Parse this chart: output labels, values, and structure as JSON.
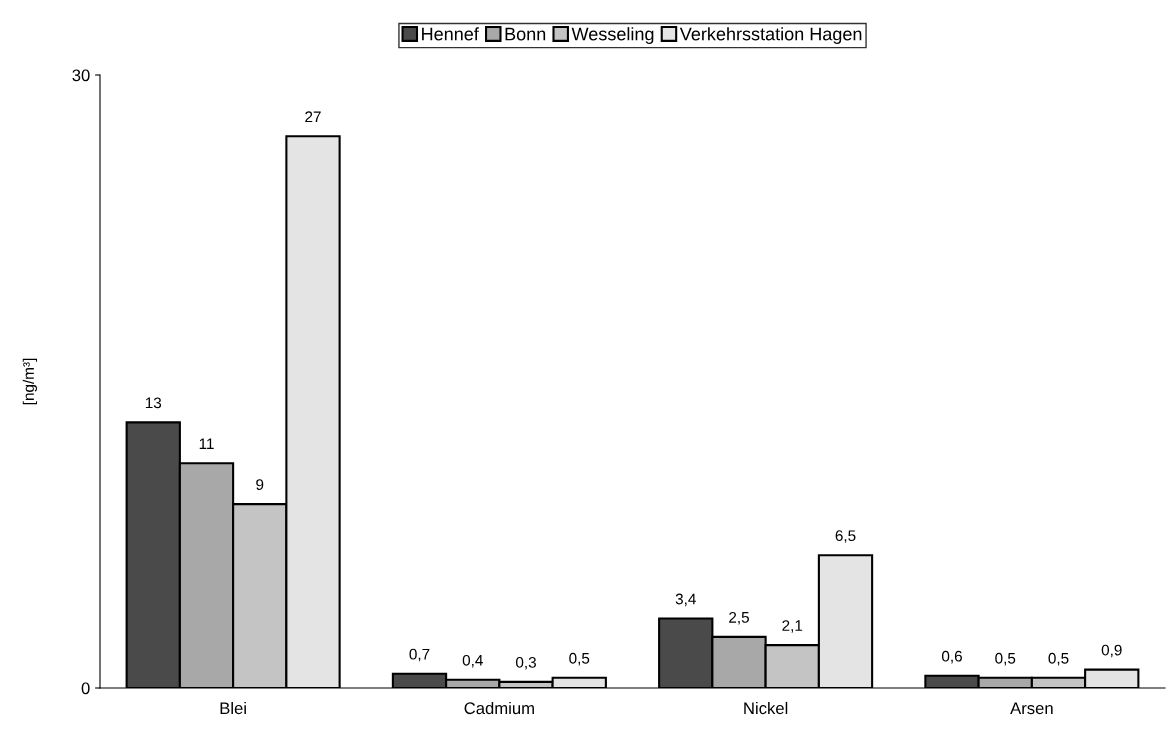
{
  "chart_data": {
    "type": "bar",
    "ylabel": "[ng/m³]",
    "categories": [
      "Blei",
      "Cadmium",
      "Nickel",
      "Arsen"
    ],
    "series": [
      {
        "name": "Hennef",
        "color": "#4a4a4a",
        "values": [
          13,
          0.7,
          3.4,
          0.6
        ],
        "value_labels": [
          "13",
          "0,7",
          "3,4",
          "0,6"
        ]
      },
      {
        "name": "Bonn",
        "color": "#a8a8a8",
        "values": [
          11,
          0.4,
          2.5,
          0.5
        ],
        "value_labels": [
          "11",
          "0,4",
          "2,5",
          "0,5"
        ]
      },
      {
        "name": "Wesseling",
        "color": "#c4c4c4",
        "values": [
          9,
          0.3,
          2.1,
          0.5
        ],
        "value_labels": [
          "9",
          "0,3",
          "2,1",
          "0,5"
        ]
      },
      {
        "name": "Verkehrsstation Hagen",
        "color": "#e4e4e4",
        "values": [
          27,
          0.5,
          6.5,
          0.9
        ],
        "value_labels": [
          "27",
          "0,5",
          "6,5",
          "0,9"
        ]
      }
    ],
    "ylim": [
      0,
      30
    ],
    "yticks": [
      0,
      30
    ],
    "grid": false,
    "legend": "top"
  }
}
